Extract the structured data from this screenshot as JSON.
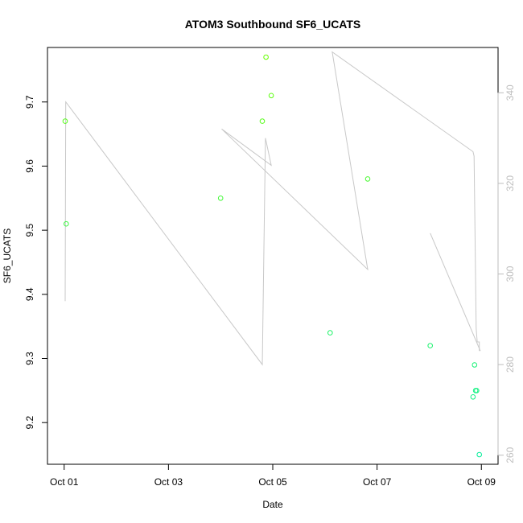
{
  "chart_data": {
    "type": "scatter",
    "title": "ATOM3 Southbound SF6_UCATS",
    "xlabel": "Date",
    "ylabel": "SF6_UCATS",
    "x_ticks": [
      {
        "x": 0,
        "label": "Oct 01"
      },
      {
        "x": 2,
        "label": "Oct 03"
      },
      {
        "x": 4,
        "label": "Oct 05"
      },
      {
        "x": 6,
        "label": "Oct 07"
      },
      {
        "x": 8,
        "label": "Oct 09"
      }
    ],
    "xlim": [
      -0.32,
      8.32
    ],
    "ylim": [
      9.135,
      9.785
    ],
    "y_ticks": [
      9.2,
      9.3,
      9.4,
      9.5,
      9.6,
      9.7
    ],
    "y2lim": [
      258,
      350
    ],
    "y2_ticks": [
      260,
      280,
      300,
      320,
      340
    ],
    "grid": false,
    "points_color_low": "#66ff00",
    "points_color_high": "#00ee99",
    "line_color": "#c8c8c8",
    "points": [
      {
        "x": 0.02,
        "y": 9.67
      },
      {
        "x": 0.04,
        "y": 9.51
      },
      {
        "x": 3.0,
        "y": 9.55
      },
      {
        "x": 3.8,
        "y": 9.67
      },
      {
        "x": 3.87,
        "y": 9.77
      },
      {
        "x": 3.97,
        "y": 9.71
      },
      {
        "x": 5.1,
        "y": 9.34
      },
      {
        "x": 5.82,
        "y": 9.58
      },
      {
        "x": 7.02,
        "y": 9.32
      },
      {
        "x": 7.84,
        "y": 9.24
      },
      {
        "x": 7.87,
        "y": 9.29
      },
      {
        "x": 7.89,
        "y": 9.25
      },
      {
        "x": 7.91,
        "y": 9.25
      },
      {
        "x": 7.96,
        "y": 9.15
      }
    ],
    "line_segments": [
      [
        {
          "x": 0.02,
          "y2": 294
        },
        {
          "x": 0.03,
          "y2": 338
        },
        {
          "x": 3.8,
          "y2": 280
        },
        {
          "x": 3.86,
          "y2": 330
        },
        {
          "x": 3.97,
          "y2": 324
        },
        {
          "x": 3.02,
          "y2": 332
        },
        {
          "x": 5.82,
          "y2": 301
        },
        {
          "x": 5.14,
          "y2": 349
        },
        {
          "x": 7.84,
          "y2": 327
        },
        {
          "x": 7.86,
          "y2": 326
        },
        {
          "x": 7.9,
          "y2": 288
        },
        {
          "x": 7.92,
          "y2": 285
        },
        {
          "x": 7.96,
          "y2": 285
        },
        {
          "x": 7.96,
          "y2": 283
        }
      ],
      [
        {
          "x": 7.02,
          "y2": 309
        },
        {
          "x": 7.98,
          "y2": 283
        }
      ]
    ]
  }
}
